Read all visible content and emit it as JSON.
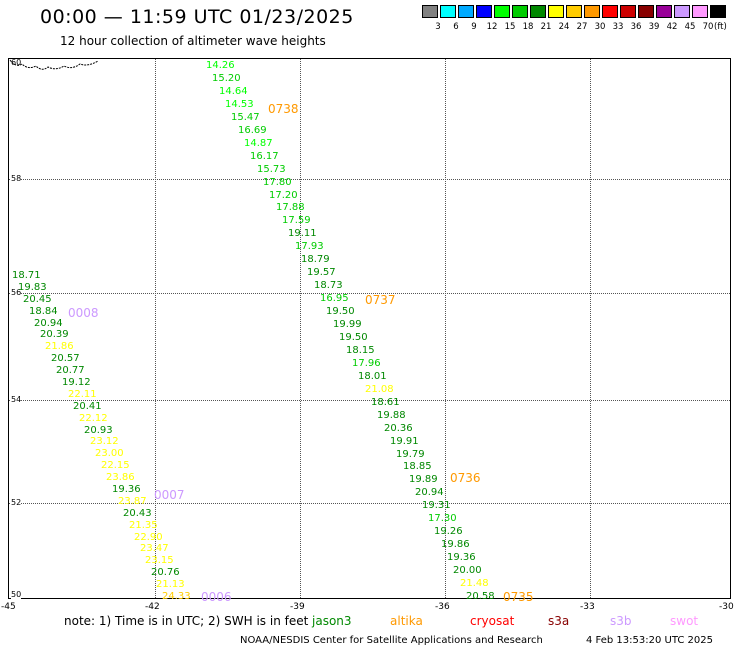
{
  "header": {
    "title": "00:00 — 11:59 UTC 01/23/2025",
    "subtitle": "12 hour collection of altimeter wave heights"
  },
  "legend": {
    "unit": "(ft)",
    "bins": [
      {
        "label": "3",
        "color": "#808080"
      },
      {
        "label": "6",
        "color": "#00ffff"
      },
      {
        "label": "9",
        "color": "#00aaff"
      },
      {
        "label": "12",
        "color": "#0000ff"
      },
      {
        "label": "15",
        "color": "#00ff00"
      },
      {
        "label": "18",
        "color": "#00cc00"
      },
      {
        "label": "21",
        "color": "#008800"
      },
      {
        "label": "24",
        "color": "#ffff00"
      },
      {
        "label": "27",
        "color": "#ffcc00"
      },
      {
        "label": "30",
        "color": "#ff9900"
      },
      {
        "label": "33",
        "color": "#ff0000"
      },
      {
        "label": "36",
        "color": "#cc0000"
      },
      {
        "label": "39",
        "color": "#880000"
      },
      {
        "label": "42",
        "color": "#990099"
      },
      {
        "label": "45",
        "color": "#cc99ff"
      },
      {
        "label": "70",
        "color": "#ff99ff"
      },
      {
        "label": "",
        "color": "#000000"
      }
    ]
  },
  "map": {
    "lat_labels": [
      "60",
      "58",
      "56",
      "54",
      "52",
      "50"
    ],
    "lon_labels": [
      "-45",
      "-42",
      "-39",
      "-36",
      "-33",
      "-30"
    ],
    "track_a": [
      {
        "v": "18.71",
        "c": "#008800"
      },
      {
        "v": "19.83",
        "c": "#008800"
      },
      {
        "v": "20.45",
        "c": "#008800"
      },
      {
        "v": "18.84",
        "c": "#008800"
      },
      {
        "v": "20.94",
        "c": "#008800"
      },
      {
        "v": "20.39",
        "c": "#008800"
      },
      {
        "v": "21.86",
        "c": "#ffff00"
      },
      {
        "v": "20.57",
        "c": "#008800"
      },
      {
        "v": "20.77",
        "c": "#008800"
      },
      {
        "v": "19.12",
        "c": "#008800"
      },
      {
        "v": "22.11",
        "c": "#ffff00"
      },
      {
        "v": "20.41",
        "c": "#008800"
      },
      {
        "v": "22.12",
        "c": "#ffff00"
      },
      {
        "v": "20.93",
        "c": "#008800"
      },
      {
        "v": "23.12",
        "c": "#ffff00"
      },
      {
        "v": "23.00",
        "c": "#ffff00"
      },
      {
        "v": "22.15",
        "c": "#ffff00"
      },
      {
        "v": "23.86",
        "c": "#ffff00"
      },
      {
        "v": "19.36",
        "c": "#008800"
      },
      {
        "v": "23.87",
        "c": "#ffff00"
      },
      {
        "v": "20.43",
        "c": "#008800"
      },
      {
        "v": "21.35",
        "c": "#ffff00"
      },
      {
        "v": "22.90",
        "c": "#ffff00"
      },
      {
        "v": "23.47",
        "c": "#ffff00"
      },
      {
        "v": "23.15",
        "c": "#ffff00"
      },
      {
        "v": "20.76",
        "c": "#008800"
      },
      {
        "v": "21.13",
        "c": "#ffff00"
      },
      {
        "v": "24.33",
        "c": "#ffcc00"
      }
    ],
    "track_b": [
      {
        "v": "14.26",
        "c": "#00ff00"
      },
      {
        "v": "15.20",
        "c": "#00cc00"
      },
      {
        "v": "14.64",
        "c": "#00ff00"
      },
      {
        "v": "14.53",
        "c": "#00ff00"
      },
      {
        "v": "15.47",
        "c": "#00cc00"
      },
      {
        "v": "16.69",
        "c": "#00cc00"
      },
      {
        "v": "14.87",
        "c": "#00ff00"
      },
      {
        "v": "16.17",
        "c": "#00cc00"
      },
      {
        "v": "15.73",
        "c": "#00cc00"
      },
      {
        "v": "17.80",
        "c": "#00cc00"
      },
      {
        "v": "17.20",
        "c": "#00cc00"
      },
      {
        "v": "17.88",
        "c": "#00cc00"
      },
      {
        "v": "17.59",
        "c": "#00cc00"
      },
      {
        "v": "19.11",
        "c": "#008800"
      },
      {
        "v": "17.93",
        "c": "#00cc00"
      },
      {
        "v": "18.79",
        "c": "#008800"
      },
      {
        "v": "19.57",
        "c": "#008800"
      },
      {
        "v": "18.73",
        "c": "#008800"
      },
      {
        "v": "16.95",
        "c": "#00cc00"
      },
      {
        "v": "19.50",
        "c": "#008800"
      },
      {
        "v": "19.99",
        "c": "#008800"
      },
      {
        "v": "19.50",
        "c": "#008800"
      },
      {
        "v": "18.15",
        "c": "#008800"
      },
      {
        "v": "17.96",
        "c": "#00cc00"
      },
      {
        "v": "18.01",
        "c": "#008800"
      },
      {
        "v": "21.08",
        "c": "#ffff00"
      },
      {
        "v": "18.61",
        "c": "#008800"
      },
      {
        "v": "19.88",
        "c": "#008800"
      },
      {
        "v": "20.36",
        "c": "#008800"
      },
      {
        "v": "19.91",
        "c": "#008800"
      },
      {
        "v": "19.79",
        "c": "#008800"
      },
      {
        "v": "18.85",
        "c": "#008800"
      },
      {
        "v": "19.89",
        "c": "#008800"
      },
      {
        "v": "20.94",
        "c": "#008800"
      },
      {
        "v": "19.31",
        "c": "#008800"
      },
      {
        "v": "17.30",
        "c": "#00cc00"
      },
      {
        "v": "19.26",
        "c": "#008800"
      },
      {
        "v": "19.86",
        "c": "#008800"
      },
      {
        "v": "19.36",
        "c": "#008800"
      },
      {
        "v": "20.00",
        "c": "#008800"
      },
      {
        "v": "21.48",
        "c": "#ffff00"
      },
      {
        "v": "20.58",
        "c": "#008800"
      }
    ],
    "time_labels": [
      {
        "text": "0008",
        "c": "#cc99ff"
      },
      {
        "text": "0007",
        "c": "#cc99ff"
      },
      {
        "text": "0006",
        "c": "#cc99ff"
      },
      {
        "text": "0738",
        "c": "#ff9900"
      },
      {
        "text": "0737",
        "c": "#ff9900"
      },
      {
        "text": "0736",
        "c": "#ff9900"
      },
      {
        "text": "0735",
        "c": "#ff9900"
      }
    ]
  },
  "footer": {
    "note": "note:  1) Time is in UTC;  2) SWH is in feet",
    "satellites": [
      {
        "name": "jason3",
        "c": "#008800"
      },
      {
        "name": "altika",
        "c": "#ff9900"
      },
      {
        "name": "cryosat",
        "c": "#ff0000"
      },
      {
        "name": "s3a",
        "c": "#880000"
      },
      {
        "name": "s3b",
        "c": "#cc99ff"
      },
      {
        "name": "swot",
        "c": "#ff99ff"
      }
    ],
    "credit": "NOAA/NESDIS Center for Satellite Applications and Research",
    "timestamp": "4 Feb 13:53:20 UTC 2025"
  }
}
